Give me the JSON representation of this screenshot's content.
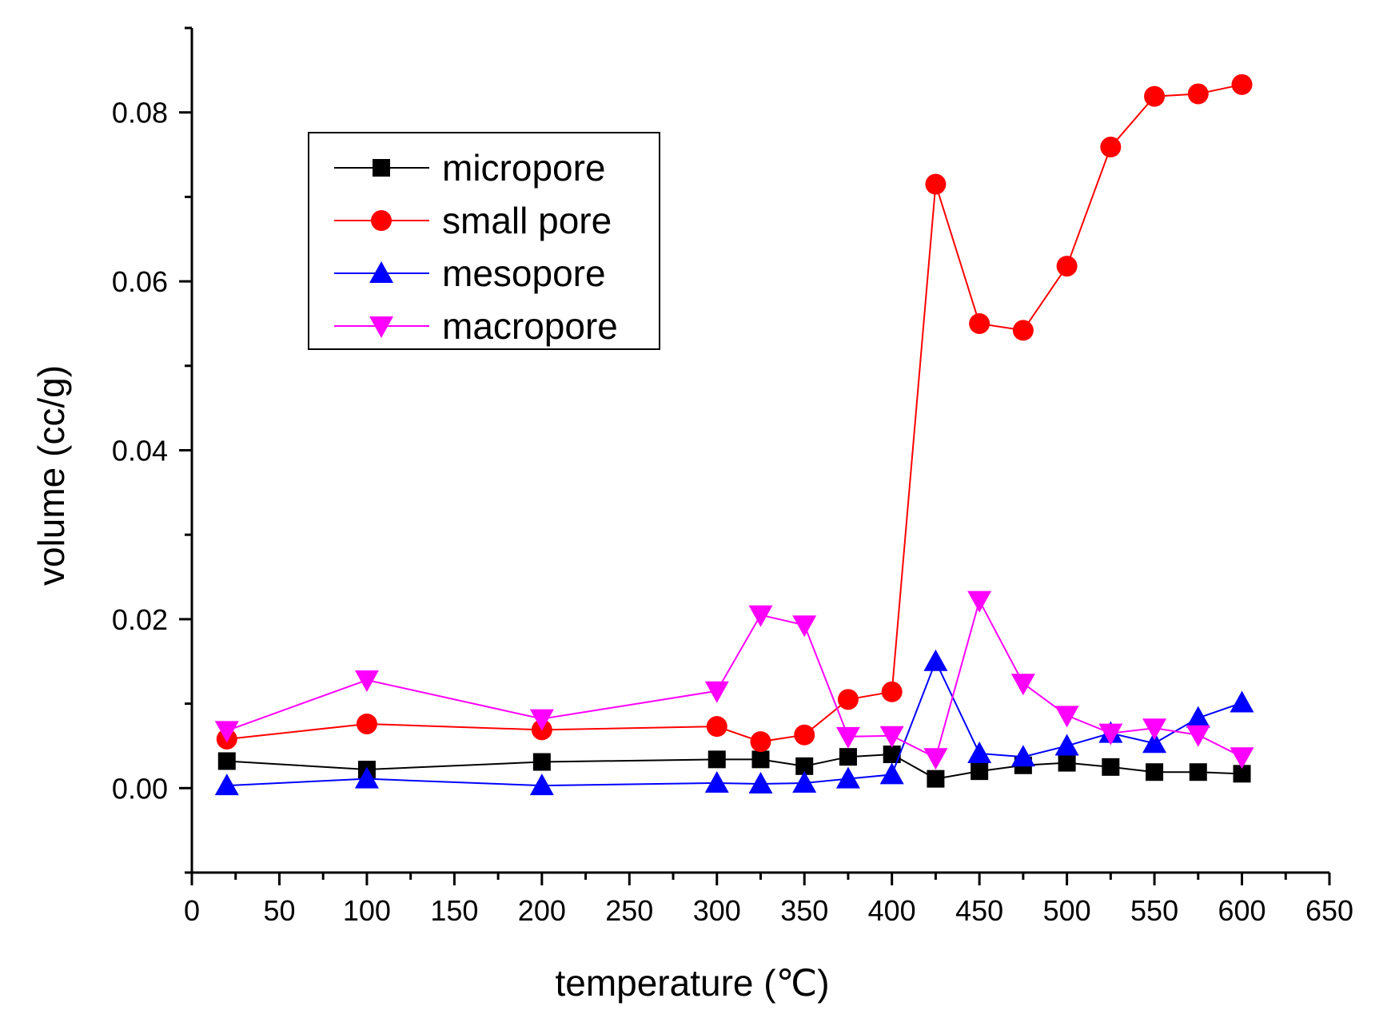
{
  "chart_data": {
    "type": "line",
    "title": "",
    "xlabel": "temperature (℃)",
    "ylabel": "volume (cc/g)",
    "xlim": [
      0,
      650
    ],
    "ylim": [
      -0.01,
      0.09
    ],
    "xticks": [
      0,
      50,
      100,
      150,
      200,
      250,
      300,
      350,
      400,
      450,
      500,
      550,
      600,
      650
    ],
    "xtick_labels": [
      "0",
      "50",
      "100",
      "150",
      "200",
      "250",
      "300",
      "350",
      "400",
      "450",
      "500",
      "550",
      "600",
      "650"
    ],
    "yticks": [
      0.0,
      0.02,
      0.04,
      0.06,
      0.08
    ],
    "ytick_labels": [
      "0.00",
      "0.02",
      "0.04",
      "0.06",
      "0.08"
    ],
    "grid": false,
    "legend_position": "top-left",
    "x": [
      20,
      100,
      200,
      300,
      325,
      350,
      375,
      400,
      425,
      450,
      475,
      500,
      525,
      550,
      575,
      600
    ],
    "series": [
      {
        "name": "micropore",
        "color": "#000000",
        "marker": "square",
        "values": [
          0.0032,
          0.0022,
          0.0031,
          0.0034,
          0.0034,
          0.0026,
          0.0037,
          0.004,
          0.0011,
          0.002,
          0.0027,
          0.003,
          0.0025,
          0.0019,
          0.0019,
          0.0017
        ]
      },
      {
        "name": "small pore",
        "color": "#ff0000",
        "marker": "circle",
        "values": [
          0.0058,
          0.0076,
          0.0069,
          0.0073,
          0.0055,
          0.0063,
          0.0105,
          0.0114,
          0.0715,
          0.055,
          0.0542,
          0.0618,
          0.0759,
          0.0819,
          0.0822,
          0.0833
        ]
      },
      {
        "name": "mesopore",
        "color": "#0000ff",
        "marker": "triangle-up",
        "values": [
          0.0003,
          0.0011,
          0.0003,
          0.0006,
          0.0005,
          0.0006,
          0.0011,
          0.0016,
          0.015,
          0.0041,
          0.0037,
          0.005,
          0.0065,
          0.0053,
          0.0083,
          0.0101
        ]
      },
      {
        "name": "macropore",
        "color": "#ff00ff",
        "marker": "triangle-down",
        "values": [
          0.0068,
          0.0128,
          0.0082,
          0.0115,
          0.0205,
          0.0193,
          0.0061,
          0.0062,
          0.0036,
          0.0222,
          0.0124,
          0.0086,
          0.0065,
          0.0071,
          0.0063,
          0.0037
        ]
      }
    ]
  }
}
